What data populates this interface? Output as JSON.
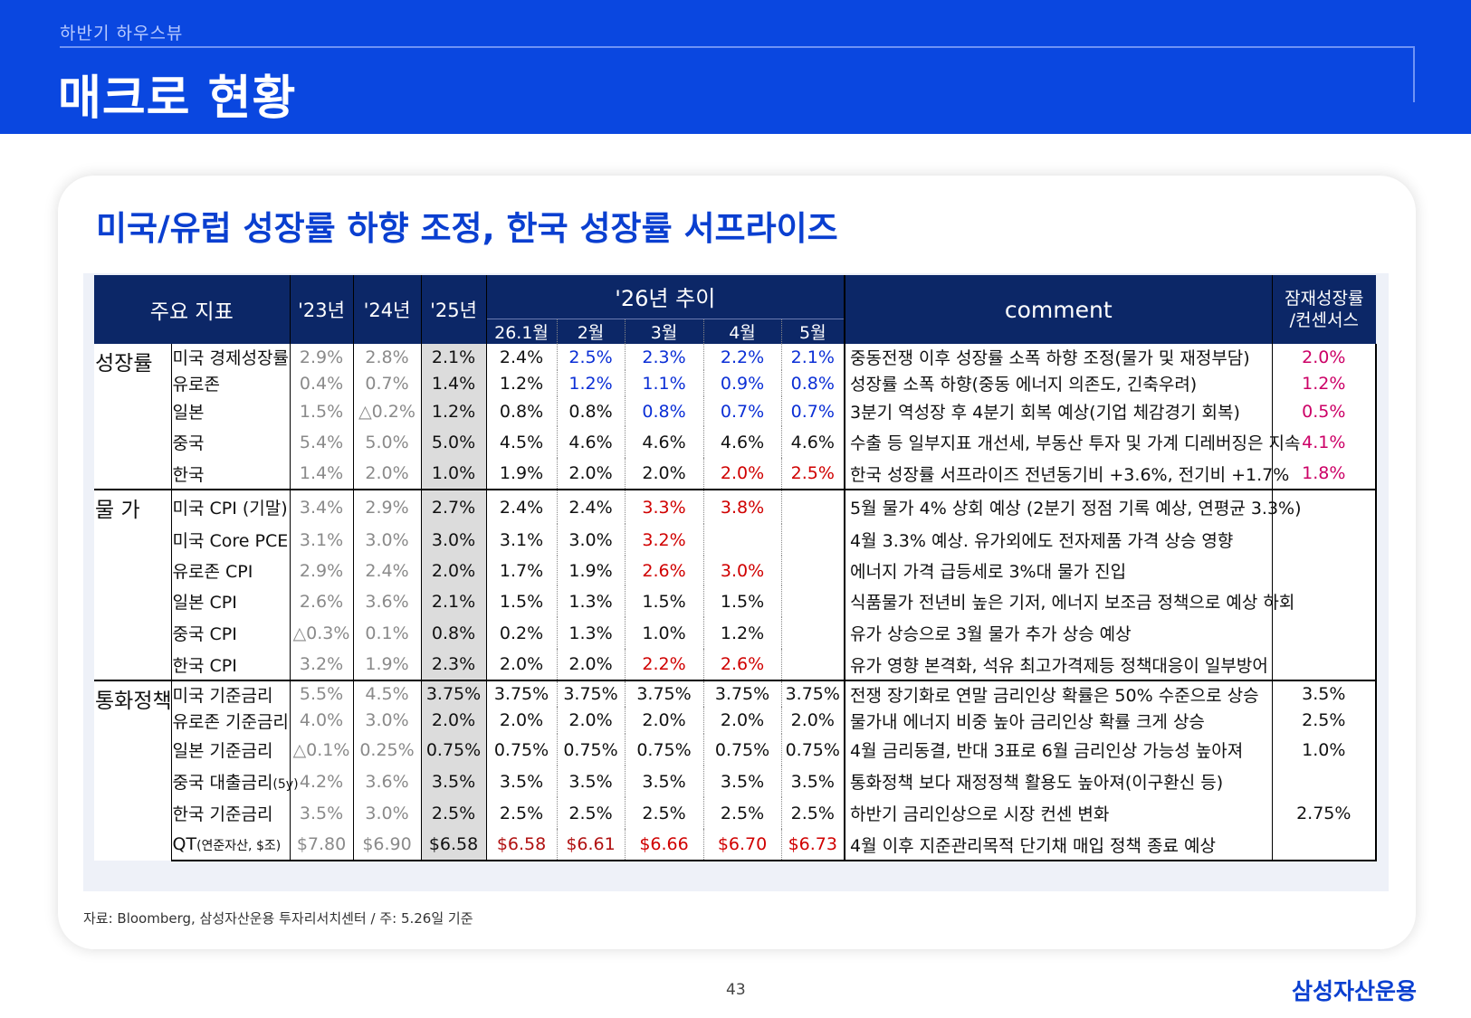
{
  "header": {
    "breadcrumb": "하반기 하우스뷰",
    "title": "매크로 현황"
  },
  "headline": "미국/유럽 성장률 하향 조정, 한국 성장률 서프라이즈",
  "table": {
    "headers": {
      "indicator": "주요 지표",
      "y23": "'23년",
      "y24": "'24년",
      "y25": "'25년",
      "trend26": "'26년 추이",
      "months": [
        "26.1월",
        "2월",
        "3월",
        "4월",
        "5월"
      ],
      "comment": "comment",
      "potential_line1": "잠재성장률",
      "potential_line2": "/컨센서스"
    },
    "categories": {
      "growth": "성장률",
      "price": "물  가",
      "monetary": "통화정책"
    },
    "rows": [
      {
        "name": "미국 경제성장률",
        "y23": "2.9%",
        "y24": "2.8%",
        "y25": "2.1%",
        "m": [
          "2.4%",
          "2.5%",
          "2.3%",
          "2.2%",
          "2.1%"
        ],
        "comment": "중동전쟁 이후 성장률 소폭 하향 조정(물가 및 재정부담)",
        "potential": "2.0%"
      },
      {
        "name": "유로존",
        "y23": "0.4%",
        "y24": "0.7%",
        "y25": "1.4%",
        "m": [
          "1.2%",
          "1.2%",
          "1.1%",
          "0.9%",
          "0.8%"
        ],
        "comment": "성장률 소폭 하향(중동 에너지 의존도, 긴축우려)",
        "potential": "1.2%"
      },
      {
        "name": "일본",
        "y23": "1.5%",
        "y24": "△0.2%",
        "y25": "1.2%",
        "m": [
          "0.8%",
          "0.8%",
          "0.8%",
          "0.7%",
          "0.7%"
        ],
        "comment": "3분기 역성장 후 4분기 회복 예상(기업 체감경기 회복)",
        "potential": "0.5%"
      },
      {
        "name": "중국",
        "y23": "5.4%",
        "y24": "5.0%",
        "y25": "5.0%",
        "m": [
          "4.5%",
          "4.6%",
          "4.6%",
          "4.6%",
          "4.6%"
        ],
        "comment": "수출 등 일부지표 개선세, 부동산 투자 및 가계 디레버징은 지속",
        "potential": "4.1%"
      },
      {
        "name": "한국",
        "y23": "1.4%",
        "y24": "2.0%",
        "y25": "1.0%",
        "m": [
          "1.9%",
          "2.0%",
          "2.0%",
          "2.0%",
          "2.5%"
        ],
        "comment": "한국 성장률 서프라이즈 전년동기비 +3.6%, 전기비 +1.7%",
        "potential": "1.8%"
      },
      {
        "name": "미국 CPI (기말)",
        "y23": "3.4%",
        "y24": "2.9%",
        "y25": "2.7%",
        "m": [
          "2.4%",
          "2.4%",
          "3.3%",
          "3.8%",
          ""
        ],
        "comment": "5월 물가 4% 상회 예상 (2분기 정점 기록 예상, 연평균 3.3%)",
        "potential": ""
      },
      {
        "name": "미국 Core PCE",
        "y23": "3.1%",
        "y24": "3.0%",
        "y25": "3.0%",
        "m": [
          "3.1%",
          "3.0%",
          "3.2%",
          "",
          ""
        ],
        "comment": "4월 3.3% 예상. 유가외에도 전자제품 가격 상승 영향",
        "potential": ""
      },
      {
        "name": "유로존 CPI",
        "y23": "2.9%",
        "y24": "2.4%",
        "y25": "2.0%",
        "m": [
          "1.7%",
          "1.9%",
          "2.6%",
          "3.0%",
          ""
        ],
        "comment": "에너지 가격 급등세로 3%대 물가 진입",
        "potential": ""
      },
      {
        "name": "일본 CPI",
        "y23": "2.6%",
        "y24": "3.6%",
        "y25": "2.1%",
        "m": [
          "1.5%",
          "1.3%",
          "1.5%",
          "1.5%",
          ""
        ],
        "comment": "식품물가 전년비 높은 기저, 에너지 보조금 정책으로 예상 하회",
        "potential": ""
      },
      {
        "name": "중국 CPI",
        "y23": "△0.3%",
        "y24": "0.1%",
        "y25": "0.8%",
        "m": [
          "0.2%",
          "1.3%",
          "1.0%",
          "1.2%",
          ""
        ],
        "comment": "유가 상승으로 3월 물가 추가 상승 예상",
        "potential": ""
      },
      {
        "name": "한국 CPI",
        "y23": "3.2%",
        "y24": "1.9%",
        "y25": "2.3%",
        "m": [
          "2.0%",
          "2.0%",
          "2.2%",
          "2.6%",
          ""
        ],
        "comment": "유가 영향 본격화, 석유 최고가격제등 정책대응이 일부방어",
        "potential": ""
      },
      {
        "name": "미국 기준금리",
        "y23": "5.5%",
        "y24": "4.5%",
        "y25": "3.75%",
        "m": [
          "3.75%",
          "3.75%",
          "3.75%",
          "3.75%",
          "3.75%"
        ],
        "comment": "전쟁 장기화로 연말 금리인상 확률은 50% 수준으로 상승",
        "potential": "3.5%"
      },
      {
        "name": "유로존 기준금리",
        "y23": "4.0%",
        "y24": "3.0%",
        "y25": "2.0%",
        "m": [
          "2.0%",
          "2.0%",
          "2.0%",
          "2.0%",
          "2.0%"
        ],
        "comment": "물가내 에너지 비중 높아 금리인상 확률 크게 상승",
        "potential": "2.5%"
      },
      {
        "name": "일본 기준금리",
        "y23": "△0.1%",
        "y24": "0.25%",
        "y25": "0.75%",
        "m": [
          "0.75%",
          "0.75%",
          "0.75%",
          "0.75%",
          "0.75%"
        ],
        "comment": "4월 금리동결, 반대 3표로 6월 금리인상 가능성 높아져",
        "potential": "1.0%"
      },
      {
        "name": "중국 대출금리",
        "name_small": "(5y)",
        "y23": "4.2%",
        "y24": "3.6%",
        "y25": "3.5%",
        "m": [
          "3.5%",
          "3.5%",
          "3.5%",
          "3.5%",
          "3.5%"
        ],
        "comment": "통화정책 보다 재정정책 활용도 높아져(이구환신 등)",
        "potential": ""
      },
      {
        "name": "한국 기준금리",
        "y23": "3.5%",
        "y24": "3.0%",
        "y25": "2.5%",
        "m": [
          "2.5%",
          "2.5%",
          "2.5%",
          "2.5%",
          "2.5%"
        ],
        "comment": "하반기 금리인상으로 시장 컨센 변화",
        "potential": "2.75%"
      },
      {
        "name": "QT",
        "name_small": "(연준자산, $조)",
        "y23": "$7.80",
        "y24": "$6.90",
        "y25": "$6.58",
        "m": [
          "$6.58",
          "$6.61",
          "$6.66",
          "$6.70",
          "$6.73"
        ],
        "comment": "4월 이후 지준관리목적 단기채 매입 정책 종료 예상",
        "potential": ""
      }
    ]
  },
  "colors": {
    "header_blue": "#0a47e0",
    "table_header_navy": "#0c2767",
    "highlight_blue": "#0b2fd6",
    "highlight_red": "#d00000",
    "potential_pink": "#cc0066"
  },
  "footnote": "자료: Bloomberg, 삼성자산운용 투자리서치센터 / 주: 5.26일 기준",
  "page_number": "43",
  "logo": "삼성자산운용"
}
